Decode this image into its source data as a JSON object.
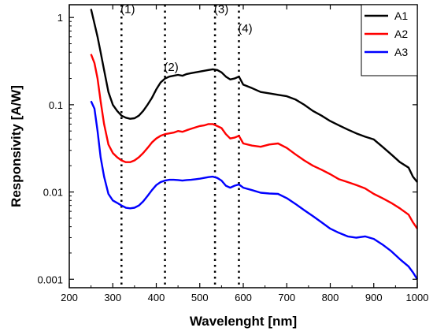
{
  "chart_data": {
    "type": "line",
    "xlabel": "Wavelenght [nm]",
    "ylabel": "Responsivity [A/W]",
    "xlim": [
      200,
      1000
    ],
    "ylim": [
      0.0008,
      1.4
    ],
    "yscale": "log",
    "grid": false,
    "legend_position": "top-right",
    "x_ticks": [
      {
        "value": 200,
        "label": "200"
      },
      {
        "value": 300,
        "label": "300"
      },
      {
        "value": 400,
        "label": "400"
      },
      {
        "value": 500,
        "label": "500"
      },
      {
        "value": 600,
        "label": "600"
      },
      {
        "value": 700,
        "label": "700"
      },
      {
        "value": 800,
        "label": "800"
      },
      {
        "value": 900,
        "label": "900"
      },
      {
        "value": 1000,
        "label": "1000"
      }
    ],
    "y_ticks": [
      {
        "value": 1,
        "label": "1"
      },
      {
        "value": 0.1,
        "label": "0.1"
      },
      {
        "value": 0.01,
        "label": "0.01"
      },
      {
        "value": 0.001,
        "label": "0.001"
      }
    ],
    "annotations": [
      {
        "label": "(1)",
        "x": 320,
        "text_y": 1.25
      },
      {
        "label": "(2)",
        "x": 420,
        "text_y": 0.27
      },
      {
        "label": "(3)",
        "x": 535,
        "text_y": 1.25
      },
      {
        "label": "(4)",
        "x": 590,
        "text_y": 0.75
      }
    ],
    "series": [
      {
        "name": "A1",
        "color": "#000000",
        "x": [
          250,
          258,
          265,
          272,
          280,
          290,
          300,
          310,
          320,
          330,
          340,
          350,
          360,
          370,
          380,
          390,
          400,
          410,
          420,
          430,
          440,
          450,
          460,
          470,
          480,
          490,
          500,
          510,
          520,
          530,
          540,
          550,
          560,
          570,
          580,
          590,
          600,
          620,
          640,
          660,
          680,
          700,
          720,
          740,
          760,
          780,
          800,
          820,
          840,
          860,
          880,
          900,
          920,
          940,
          960,
          980,
          990,
          1000
        ],
        "y": [
          1.25,
          0.85,
          0.6,
          0.4,
          0.25,
          0.14,
          0.1,
          0.085,
          0.075,
          0.071,
          0.069,
          0.07,
          0.075,
          0.085,
          0.1,
          0.12,
          0.15,
          0.18,
          0.2,
          0.21,
          0.215,
          0.22,
          0.215,
          0.225,
          0.23,
          0.235,
          0.24,
          0.245,
          0.25,
          0.255,
          0.25,
          0.235,
          0.21,
          0.195,
          0.2,
          0.21,
          0.17,
          0.155,
          0.14,
          0.135,
          0.13,
          0.125,
          0.115,
          0.1,
          0.085,
          0.075,
          0.065,
          0.058,
          0.052,
          0.047,
          0.043,
          0.04,
          0.033,
          0.027,
          0.022,
          0.019,
          0.015,
          0.013
        ]
      },
      {
        "name": "A2",
        "color": "#ff0000",
        "x": [
          250,
          258,
          265,
          272,
          280,
          290,
          300,
          310,
          320,
          330,
          340,
          350,
          360,
          370,
          380,
          390,
          400,
          410,
          420,
          430,
          440,
          450,
          460,
          470,
          480,
          490,
          500,
          510,
          520,
          530,
          540,
          550,
          560,
          570,
          580,
          590,
          600,
          620,
          640,
          660,
          680,
          700,
          720,
          740,
          760,
          780,
          800,
          820,
          840,
          860,
          880,
          900,
          920,
          940,
          960,
          980,
          990,
          1000
        ],
        "y": [
          0.38,
          0.3,
          0.2,
          0.11,
          0.06,
          0.035,
          0.028,
          0.025,
          0.023,
          0.022,
          0.022,
          0.023,
          0.025,
          0.028,
          0.032,
          0.037,
          0.041,
          0.044,
          0.046,
          0.047,
          0.048,
          0.05,
          0.049,
          0.051,
          0.053,
          0.055,
          0.057,
          0.058,
          0.06,
          0.06,
          0.057,
          0.054,
          0.046,
          0.041,
          0.042,
          0.044,
          0.036,
          0.034,
          0.033,
          0.035,
          0.036,
          0.032,
          0.027,
          0.023,
          0.02,
          0.018,
          0.016,
          0.014,
          0.013,
          0.012,
          0.011,
          0.0095,
          0.0085,
          0.0075,
          0.0065,
          0.0055,
          0.0045,
          0.0038
        ]
      },
      {
        "name": "A3",
        "color": "#0000ff",
        "x": [
          250,
          258,
          265,
          272,
          280,
          290,
          300,
          310,
          320,
          330,
          340,
          350,
          360,
          370,
          380,
          390,
          400,
          410,
          420,
          430,
          440,
          450,
          460,
          470,
          480,
          490,
          500,
          510,
          520,
          530,
          540,
          550,
          560,
          570,
          580,
          590,
          600,
          620,
          640,
          660,
          680,
          700,
          720,
          740,
          760,
          780,
          800,
          820,
          840,
          860,
          880,
          900,
          920,
          940,
          960,
          980,
          990,
          1000
        ],
        "y": [
          0.11,
          0.09,
          0.05,
          0.025,
          0.015,
          0.0095,
          0.008,
          0.0075,
          0.007,
          0.0066,
          0.0065,
          0.0066,
          0.007,
          0.0078,
          0.009,
          0.0105,
          0.012,
          0.013,
          0.0135,
          0.0138,
          0.0138,
          0.0137,
          0.0135,
          0.0137,
          0.0138,
          0.014,
          0.0142,
          0.0145,
          0.0148,
          0.015,
          0.0145,
          0.0135,
          0.0118,
          0.0112,
          0.0118,
          0.0122,
          0.0112,
          0.0105,
          0.0098,
          0.0096,
          0.0095,
          0.0085,
          0.0073,
          0.0062,
          0.0053,
          0.0045,
          0.0038,
          0.0034,
          0.0031,
          0.003,
          0.0031,
          0.0029,
          0.0025,
          0.0021,
          0.0017,
          0.0014,
          0.0012,
          0.001
        ]
      }
    ]
  }
}
